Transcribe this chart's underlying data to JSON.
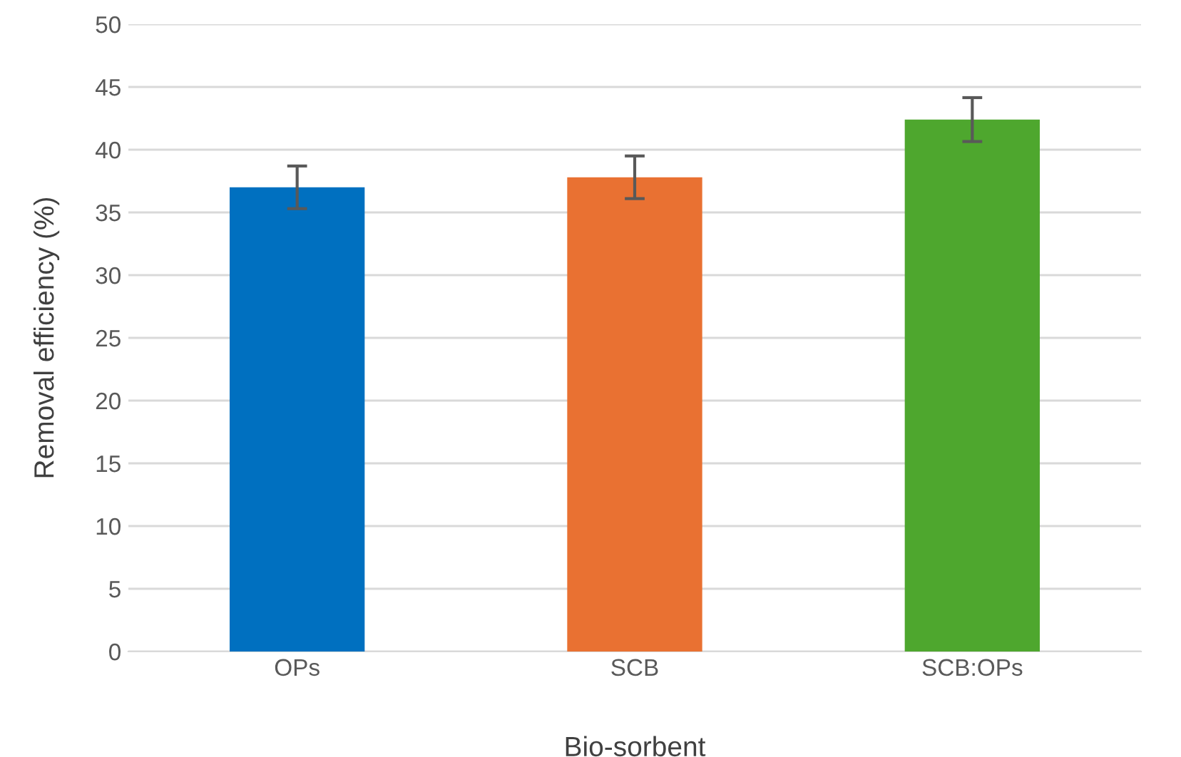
{
  "chart_data": {
    "type": "bar",
    "xlabel": "Bio-sorbent",
    "ylabel": "Removal efficiency (%)",
    "categories": [
      "OPs",
      "SCB",
      "SCB:OPs"
    ],
    "values": [
      37.0,
      37.8,
      42.4
    ],
    "errors": [
      1.7,
      1.7,
      1.75
    ],
    "colors": [
      "#0070c0",
      "#e97132",
      "#4ea72e"
    ],
    "ylim": [
      0,
      50
    ],
    "yticks": [
      0,
      5,
      10,
      15,
      20,
      25,
      30,
      35,
      40,
      45,
      50
    ],
    "grid": "y"
  }
}
